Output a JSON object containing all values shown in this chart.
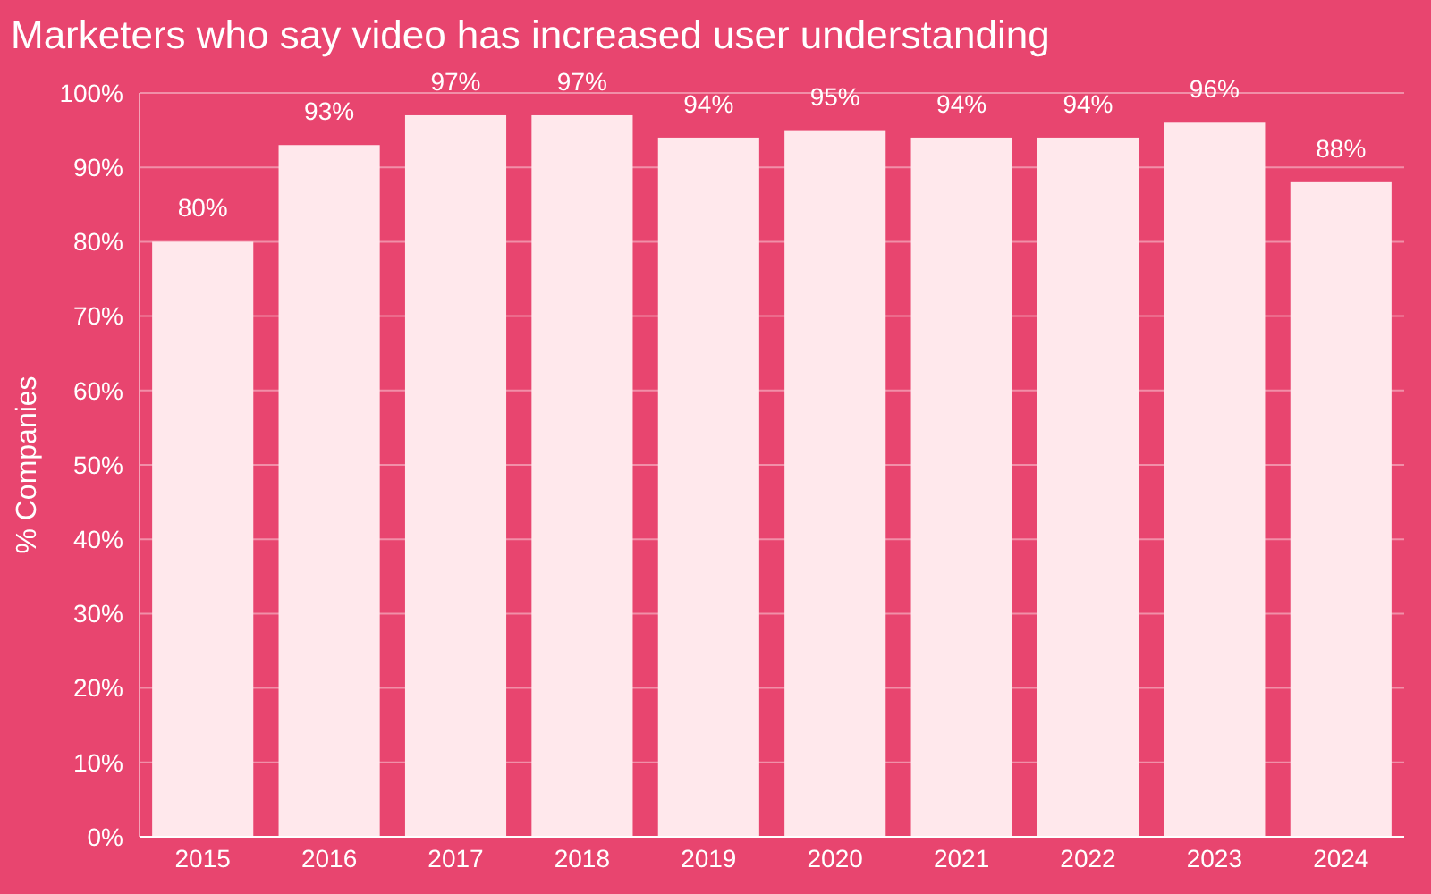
{
  "chart_data": {
    "type": "bar",
    "title": "Marketers who say video has increased user understanding",
    "ylabel": "% Companies",
    "categories": [
      "2015",
      "2016",
      "2017",
      "2018",
      "2019",
      "2020",
      "2021",
      "2022",
      "2023",
      "2024"
    ],
    "values": [
      80,
      93,
      97,
      97,
      94,
      95,
      94,
      94,
      96,
      88
    ],
    "value_labels": [
      "80%",
      "93%",
      "97%",
      "97%",
      "94%",
      "95%",
      "94%",
      "94%",
      "96%",
      "88%"
    ],
    "color": "#ffe8ec",
    "ylim": [
      0,
      100
    ],
    "yticks": [
      {
        "value": 0,
        "label": "0%"
      },
      {
        "value": 10,
        "label": "10%"
      },
      {
        "value": 20,
        "label": "20%"
      },
      {
        "value": 30,
        "label": "30%"
      },
      {
        "value": 40,
        "label": "40%"
      },
      {
        "value": 50,
        "label": "50%"
      },
      {
        "value": 60,
        "label": "60%"
      },
      {
        "value": 70,
        "label": "70%"
      },
      {
        "value": 80,
        "label": "80%"
      },
      {
        "value": 90,
        "label": "90%"
      },
      {
        "value": 100,
        "label": "100%"
      }
    ],
    "grid": "y"
  }
}
